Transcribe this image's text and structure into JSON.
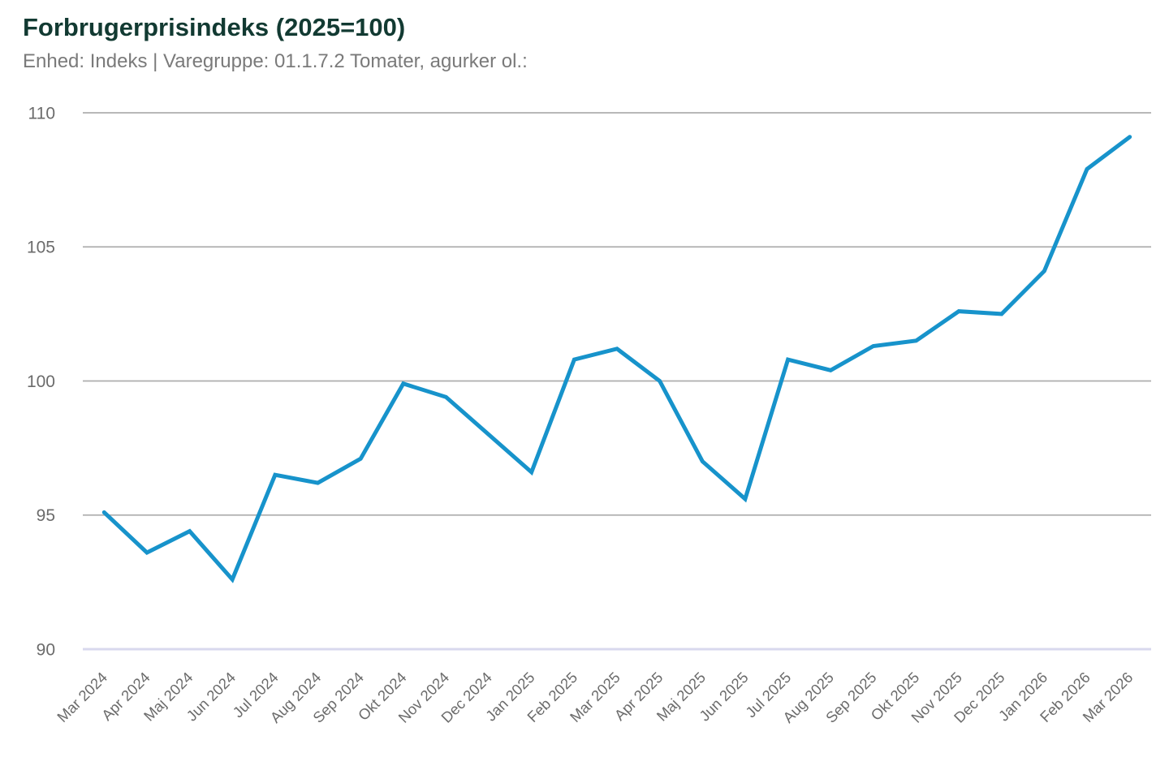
{
  "header": {
    "title": "Forbrugerprisindeks (2025=100)",
    "subtitle": "Enhed: Indeks | Varegruppe: 01.1.7.2 Tomater, agurker ol.:"
  },
  "chart_data": {
    "type": "line",
    "title": "Forbrugerprisindeks (2025=100)",
    "subtitle": "Enhed: Indeks | Varegruppe: 01.1.7.2 Tomater, agurker ol.:",
    "unit": "Indeks",
    "series_name": "01.1.7.2 Tomater, agurker ol.",
    "categories": [
      "Mar 2024",
      "Apr 2024",
      "Maj 2024",
      "Jun 2024",
      "Jul 2024",
      "Aug 2024",
      "Sep 2024",
      "Okt 2024",
      "Nov 2024",
      "Dec 2024",
      "Jan 2025",
      "Feb 2025",
      "Mar 2025",
      "Apr 2025",
      "Maj 2025",
      "Jun 2025",
      "Jul 2025",
      "Aug 2025",
      "Sep 2025",
      "Okt 2025",
      "Nov 2025",
      "Dec 2025",
      "Jan 2026",
      "Feb 2026",
      "Mar 2026"
    ],
    "values": [
      95.1,
      93.6,
      94.4,
      92.6,
      96.5,
      96.2,
      97.1,
      99.9,
      99.4,
      98.0,
      96.6,
      100.8,
      101.2,
      100.0,
      97.0,
      95.6,
      100.8,
      100.4,
      101.3,
      101.5,
      102.6,
      102.5,
      104.1,
      107.9,
      109.1
    ],
    "ylim": [
      90,
      110
    ],
    "yticks": [
      90,
      95,
      100,
      105,
      110
    ],
    "grid": "horizontal",
    "legend": "none",
    "x_tick_rotation": -45,
    "colors": {
      "line": "#1793cb",
      "grid": "#aeaeae",
      "baseline": "#d9d9ee",
      "title": "#123a32",
      "subtitle": "#7a7a7a",
      "tick_labels": "#6b6b6b",
      "background": "#ffffff"
    }
  }
}
